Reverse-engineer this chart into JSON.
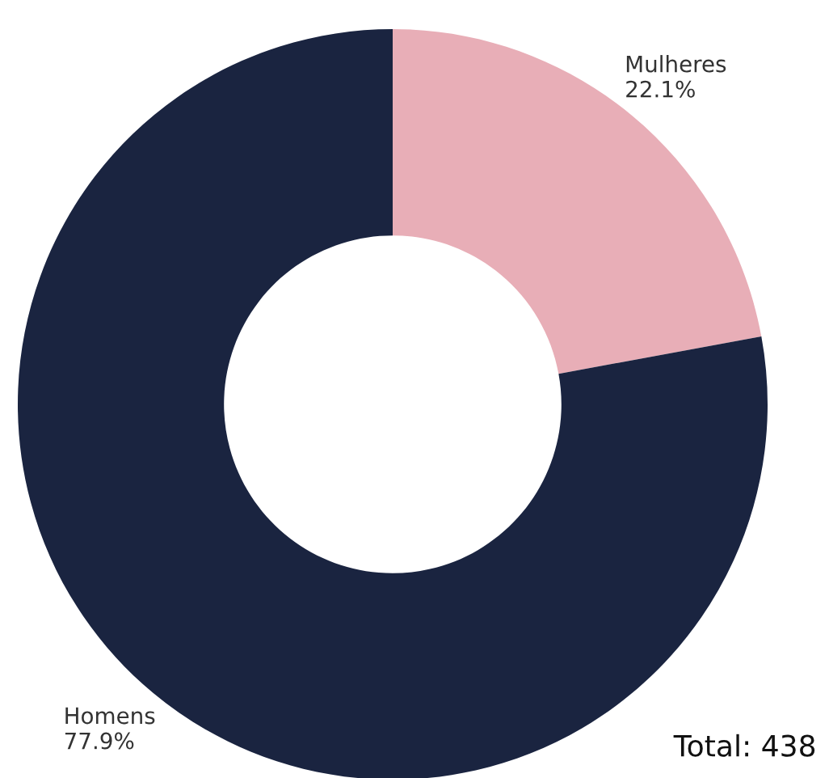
{
  "chart_data": {
    "type": "donut",
    "categories": [
      "Mulheres",
      "Homens"
    ],
    "values": [
      22.1,
      77.9
    ],
    "colors": [
      "#e8aeb7",
      "#1a2440"
    ],
    "value_labels": [
      "22.1%",
      "77.9%"
    ],
    "annotations": [
      "Total: 438"
    ]
  }
}
